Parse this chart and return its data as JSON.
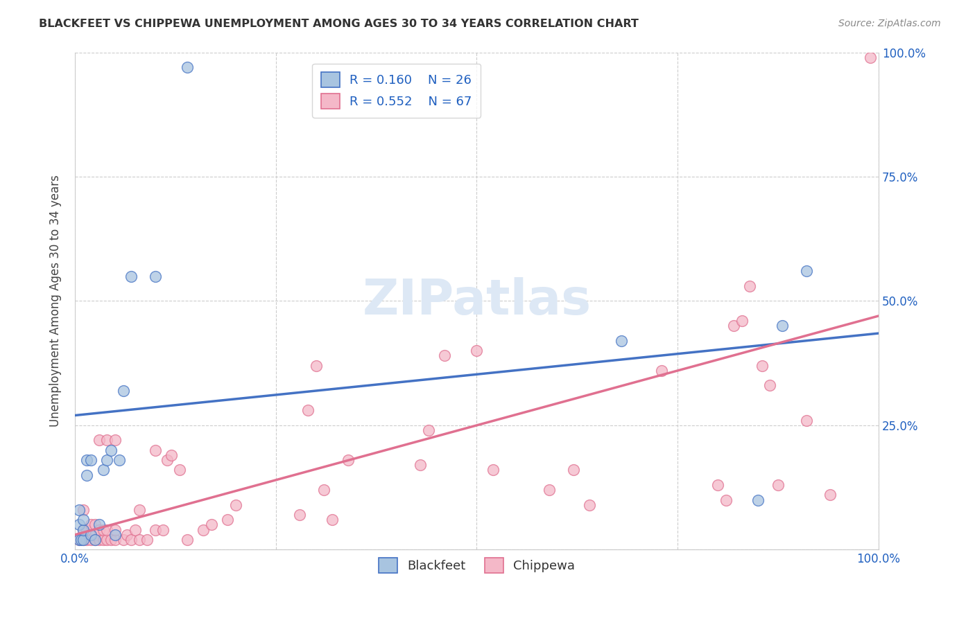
{
  "title": "BLACKFEET VS CHIPPEWA UNEMPLOYMENT AMONG AGES 30 TO 34 YEARS CORRELATION CHART",
  "source": "Source: ZipAtlas.com",
  "ylabel": "Unemployment Among Ages 30 to 34 years",
  "xlim": [
    0,
    1.0
  ],
  "ylim": [
    0,
    1.0
  ],
  "blackfeet_R": 0.16,
  "blackfeet_N": 26,
  "chippewa_R": 0.552,
  "chippewa_N": 67,
  "blackfeet_color": "#a8c4e0",
  "chippewa_color": "#f4b8c8",
  "blackfeet_line_color": "#4472c4",
  "chippewa_line_color": "#e07090",
  "legend_R_color": "#2060c0",
  "watermark_color": "#dde8f5",
  "blackfeet_x": [
    0.005,
    0.005,
    0.005,
    0.008,
    0.01,
    0.01,
    0.01,
    0.015,
    0.015,
    0.02,
    0.02,
    0.025,
    0.03,
    0.035,
    0.04,
    0.045,
    0.05,
    0.055,
    0.06,
    0.07,
    0.1,
    0.14,
    0.68,
    0.85,
    0.88,
    0.91
  ],
  "blackfeet_y": [
    0.02,
    0.05,
    0.08,
    0.02,
    0.02,
    0.04,
    0.06,
    0.15,
    0.18,
    0.03,
    0.18,
    0.02,
    0.05,
    0.16,
    0.18,
    0.2,
    0.03,
    0.18,
    0.32,
    0.55,
    0.55,
    0.97,
    0.42,
    0.1,
    0.45,
    0.56
  ],
  "chippewa_x": [
    0.005,
    0.01,
    0.01,
    0.01,
    0.015,
    0.015,
    0.02,
    0.02,
    0.025,
    0.025,
    0.025,
    0.03,
    0.03,
    0.03,
    0.035,
    0.035,
    0.04,
    0.04,
    0.04,
    0.045,
    0.05,
    0.05,
    0.05,
    0.06,
    0.065,
    0.07,
    0.075,
    0.08,
    0.08,
    0.09,
    0.1,
    0.1,
    0.11,
    0.115,
    0.12,
    0.13,
    0.14,
    0.16,
    0.17,
    0.19,
    0.2,
    0.28,
    0.29,
    0.3,
    0.31,
    0.32,
    0.34,
    0.43,
    0.44,
    0.46,
    0.5,
    0.52,
    0.59,
    0.62,
    0.64,
    0.73,
    0.8,
    0.81,
    0.82,
    0.83,
    0.84,
    0.855,
    0.865,
    0.875,
    0.91,
    0.94,
    0.99
  ],
  "chippewa_y": [
    0.02,
    0.02,
    0.04,
    0.08,
    0.02,
    0.04,
    0.02,
    0.05,
    0.02,
    0.03,
    0.05,
    0.02,
    0.04,
    0.22,
    0.02,
    0.04,
    0.02,
    0.04,
    0.22,
    0.02,
    0.02,
    0.04,
    0.22,
    0.02,
    0.03,
    0.02,
    0.04,
    0.02,
    0.08,
    0.02,
    0.04,
    0.2,
    0.04,
    0.18,
    0.19,
    0.16,
    0.02,
    0.04,
    0.05,
    0.06,
    0.09,
    0.07,
    0.28,
    0.37,
    0.12,
    0.06,
    0.18,
    0.17,
    0.24,
    0.39,
    0.4,
    0.16,
    0.12,
    0.16,
    0.09,
    0.36,
    0.13,
    0.1,
    0.45,
    0.46,
    0.53,
    0.37,
    0.33,
    0.13,
    0.26,
    0.11,
    0.99
  ],
  "bf_line_x0": 0.0,
  "bf_line_y0": 0.27,
  "bf_line_x1": 1.0,
  "bf_line_y1": 0.435,
  "ch_line_x0": 0.0,
  "ch_line_y0": 0.03,
  "ch_line_x1": 1.0,
  "ch_line_y1": 0.47
}
